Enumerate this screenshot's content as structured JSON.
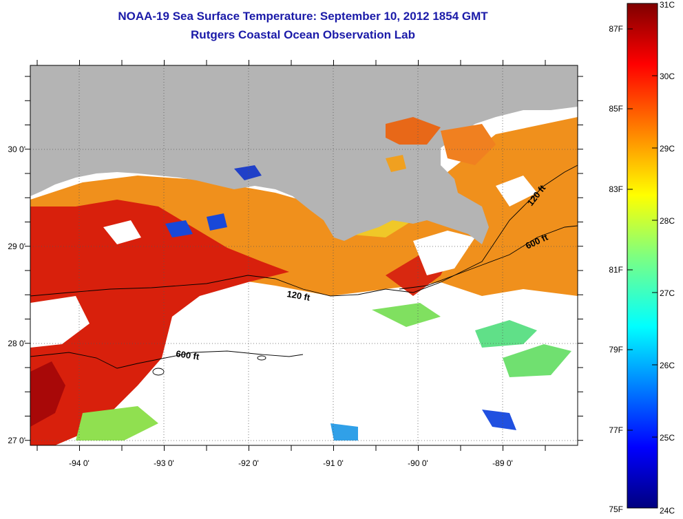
{
  "header": {
    "title_line1": "NOAA-19 Sea Surface Temperature:  September 10, 2012 1854 GMT",
    "title_line2": "Rutgers Coastal Ocean Observation Lab"
  },
  "map": {
    "lon_ticks": [
      "-94 0'",
      "-93 0'",
      "-92 0'",
      "-91 0'",
      "-90 0'",
      "-89 0'"
    ],
    "lat_ticks": [
      "30 0'",
      "29 0'",
      "28 0'",
      "27 0'"
    ],
    "contours": [
      "120 ft",
      "600 ft",
      "120 ft",
      "600 ft"
    ],
    "colors": {
      "land": "#b4b4b4",
      "cloud": "#ffffff",
      "hot": "#cc1010",
      "warm": "#f08020",
      "mild": "#f0c020",
      "cool": "#40e8c0",
      "cold": "#1040d0"
    }
  },
  "colorbar": {
    "fahrenheit_labels": [
      "87F",
      "85F",
      "83F",
      "81F",
      "79F",
      "77F",
      "75F"
    ],
    "celsius_labels": [
      "31C",
      "30C",
      "29C",
      "28C",
      "27C",
      "26C",
      "25C",
      "24C"
    ],
    "colormap": "jet",
    "range_c": [
      24,
      31
    ]
  }
}
